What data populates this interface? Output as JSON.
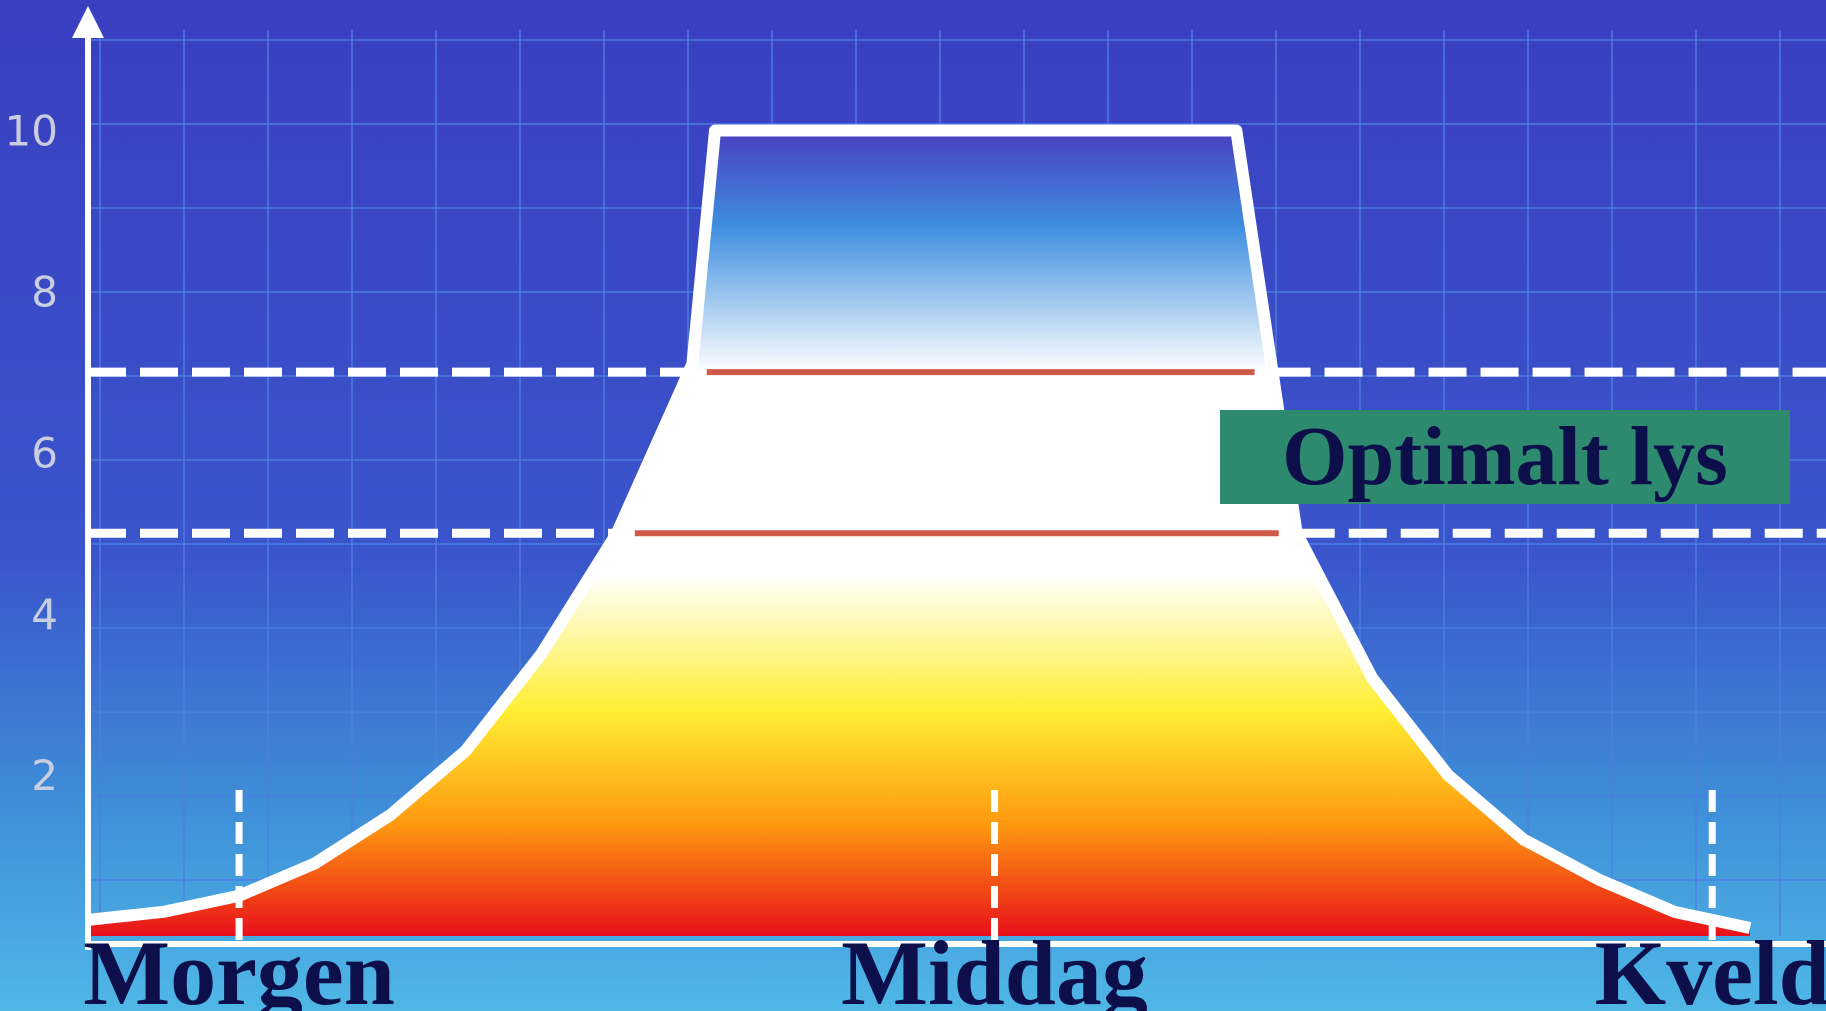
{
  "chart_data": {
    "type": "area",
    "title": "",
    "xlabel": "",
    "ylabel": "",
    "ylim": [
      0,
      11
    ],
    "grid": true,
    "y_ticks": [
      "2",
      "4",
      "6",
      "8",
      "10"
    ],
    "y_tick_values": [
      2,
      4,
      6,
      8,
      10
    ],
    "categories": [
      "Morgen",
      "Middag",
      "Kveld"
    ],
    "category_positions": [
      2,
      12,
      21.5
    ],
    "xlim": [
      0,
      22
    ],
    "series": [
      {
        "x": [
          0,
          1,
          2,
          3,
          4,
          5,
          6,
          7,
          8,
          8.3,
          9,
          10,
          11,
          12,
          13,
          14,
          15,
          15.2,
          16,
          17,
          18,
          19,
          20,
          21,
          22
        ],
        "values": [
          0.2,
          0.3,
          0.5,
          0.9,
          1.5,
          2.3,
          3.5,
          5.0,
          7.1,
          10,
          10,
          10,
          10,
          10,
          10,
          10,
          10,
          10,
          5.0,
          3.2,
          2.0,
          1.2,
          0.7,
          0.3,
          0.1
        ]
      }
    ],
    "reference_lines": [
      5,
      7
    ],
    "annotation": "Optimalt lys",
    "colors": {
      "background": "#3a47c4",
      "grid": "#4d7fe0",
      "axis": "#ffffff",
      "curve": "#ffffff",
      "reference_inside": "#d05a4a",
      "annotation_box": "#2e8a6e",
      "label": "#0c0f4a"
    }
  }
}
